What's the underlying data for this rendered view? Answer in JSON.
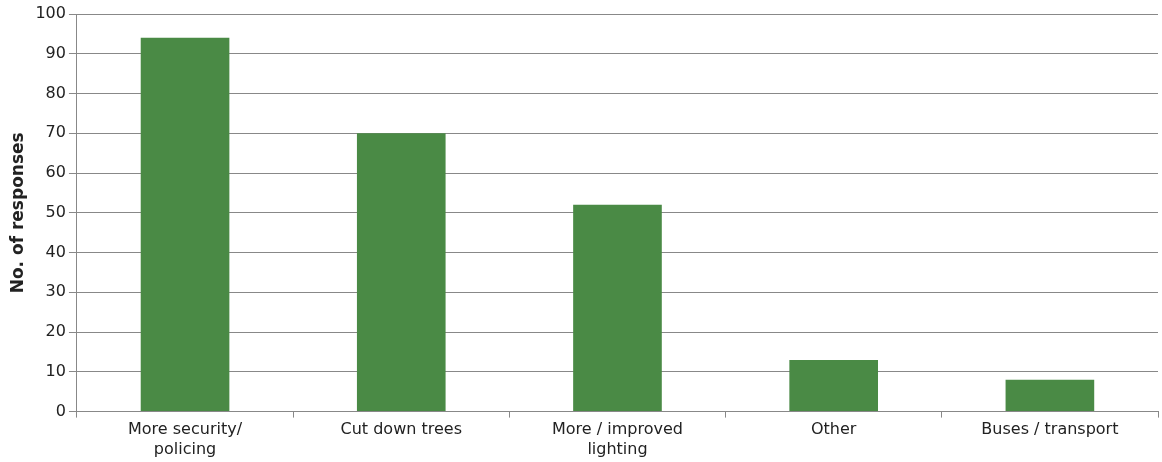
{
  "chart_data": {
    "type": "bar",
    "ylabel": "No. of responses",
    "categories": [
      "More security/ policing",
      "Cut down trees",
      "More / improved lighting",
      "Other",
      "Buses / transport"
    ],
    "values": [
      94,
      70,
      52,
      13,
      8
    ],
    "color": "#4a8a45",
    "ylim": [
      0,
      100
    ],
    "yticks": [
      0,
      10,
      20,
      30,
      40,
      50,
      60,
      70,
      80,
      90,
      100
    ],
    "grid": "y",
    "legend": false
  }
}
